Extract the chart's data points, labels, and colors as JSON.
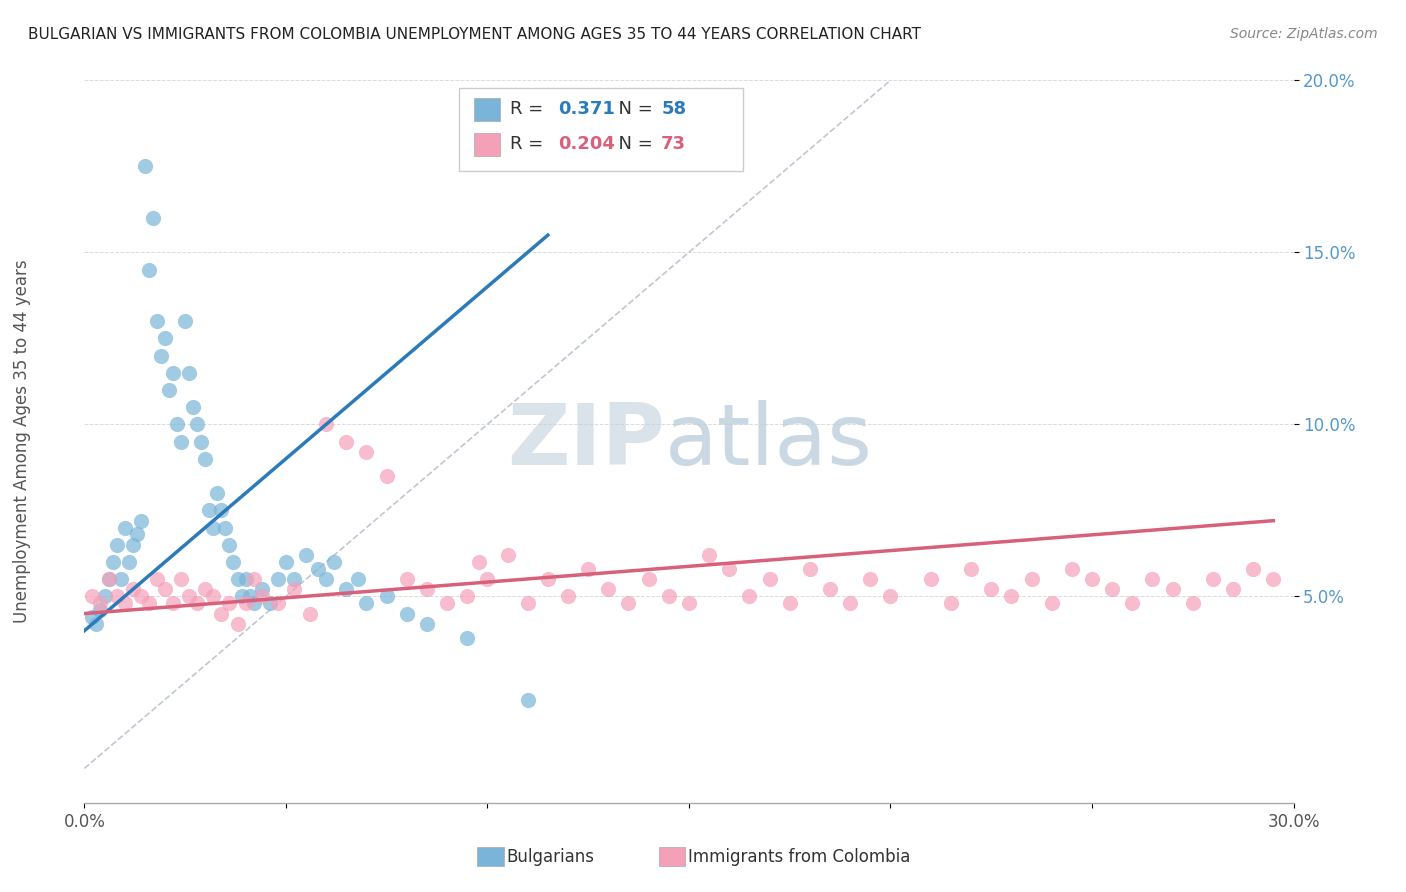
{
  "title": "BULGARIAN VS IMMIGRANTS FROM COLOMBIA UNEMPLOYMENT AMONG AGES 35 TO 44 YEARS CORRELATION CHART",
  "source": "Source: ZipAtlas.com",
  "ylabel_axis": "Unemployment Among Ages 35 to 44 years",
  "legend1_r": "0.371",
  "legend1_n": "58",
  "legend2_r": "0.204",
  "legend2_n": "73",
  "blue_color": "#7ab4d8",
  "pink_color": "#f4a0b8",
  "blue_line_color": "#2b7bba",
  "pink_line_color": "#d9607a",
  "diagonal_color": "#b0b8cc",
  "xlim": [
    0.0,
    0.3
  ],
  "ylim": [
    -0.01,
    0.2
  ],
  "bulgarians_x": [
    0.002,
    0.003,
    0.004,
    0.005,
    0.006,
    0.007,
    0.008,
    0.009,
    0.01,
    0.011,
    0.012,
    0.013,
    0.014,
    0.015,
    0.016,
    0.017,
    0.018,
    0.019,
    0.02,
    0.021,
    0.022,
    0.023,
    0.024,
    0.025,
    0.026,
    0.027,
    0.028,
    0.029,
    0.03,
    0.031,
    0.032,
    0.033,
    0.034,
    0.035,
    0.036,
    0.037,
    0.038,
    0.039,
    0.04,
    0.041,
    0.042,
    0.044,
    0.046,
    0.048,
    0.05,
    0.052,
    0.055,
    0.058,
    0.06,
    0.062,
    0.065,
    0.068,
    0.07,
    0.075,
    0.08,
    0.085,
    0.095,
    0.11
  ],
  "bulgarians_y": [
    0.044,
    0.042,
    0.046,
    0.05,
    0.055,
    0.06,
    0.065,
    0.055,
    0.07,
    0.06,
    0.065,
    0.068,
    0.072,
    0.175,
    0.145,
    0.16,
    0.13,
    0.12,
    0.125,
    0.11,
    0.115,
    0.1,
    0.095,
    0.13,
    0.115,
    0.105,
    0.1,
    0.095,
    0.09,
    0.075,
    0.07,
    0.08,
    0.075,
    0.07,
    0.065,
    0.06,
    0.055,
    0.05,
    0.055,
    0.05,
    0.048,
    0.052,
    0.048,
    0.055,
    0.06,
    0.055,
    0.062,
    0.058,
    0.055,
    0.06,
    0.052,
    0.055,
    0.048,
    0.05,
    0.045,
    0.042,
    0.038,
    0.02
  ],
  "colombia_x": [
    0.002,
    0.004,
    0.006,
    0.008,
    0.01,
    0.012,
    0.014,
    0.016,
    0.018,
    0.02,
    0.022,
    0.024,
    0.026,
    0.028,
    0.03,
    0.032,
    0.034,
    0.036,
    0.038,
    0.04,
    0.042,
    0.044,
    0.048,
    0.052,
    0.056,
    0.06,
    0.065,
    0.07,
    0.075,
    0.08,
    0.085,
    0.09,
    0.095,
    0.1,
    0.11,
    0.115,
    0.12,
    0.125,
    0.13,
    0.135,
    0.14,
    0.145,
    0.15,
    0.155,
    0.16,
    0.165,
    0.17,
    0.175,
    0.18,
    0.185,
    0.19,
    0.195,
    0.2,
    0.21,
    0.215,
    0.22,
    0.225,
    0.23,
    0.235,
    0.24,
    0.245,
    0.25,
    0.255,
    0.26,
    0.265,
    0.27,
    0.275,
    0.28,
    0.285,
    0.29,
    0.295,
    0.098,
    0.105
  ],
  "colombia_y": [
    0.05,
    0.048,
    0.055,
    0.05,
    0.048,
    0.052,
    0.05,
    0.048,
    0.055,
    0.052,
    0.048,
    0.055,
    0.05,
    0.048,
    0.052,
    0.05,
    0.045,
    0.048,
    0.042,
    0.048,
    0.055,
    0.05,
    0.048,
    0.052,
    0.045,
    0.1,
    0.095,
    0.092,
    0.085,
    0.055,
    0.052,
    0.048,
    0.05,
    0.055,
    0.048,
    0.055,
    0.05,
    0.058,
    0.052,
    0.048,
    0.055,
    0.05,
    0.048,
    0.062,
    0.058,
    0.05,
    0.055,
    0.048,
    0.058,
    0.052,
    0.048,
    0.055,
    0.05,
    0.055,
    0.048,
    0.058,
    0.052,
    0.05,
    0.055,
    0.048,
    0.058,
    0.055,
    0.052,
    0.048,
    0.055,
    0.052,
    0.048,
    0.055,
    0.052,
    0.058,
    0.055,
    0.06,
    0.062
  ]
}
